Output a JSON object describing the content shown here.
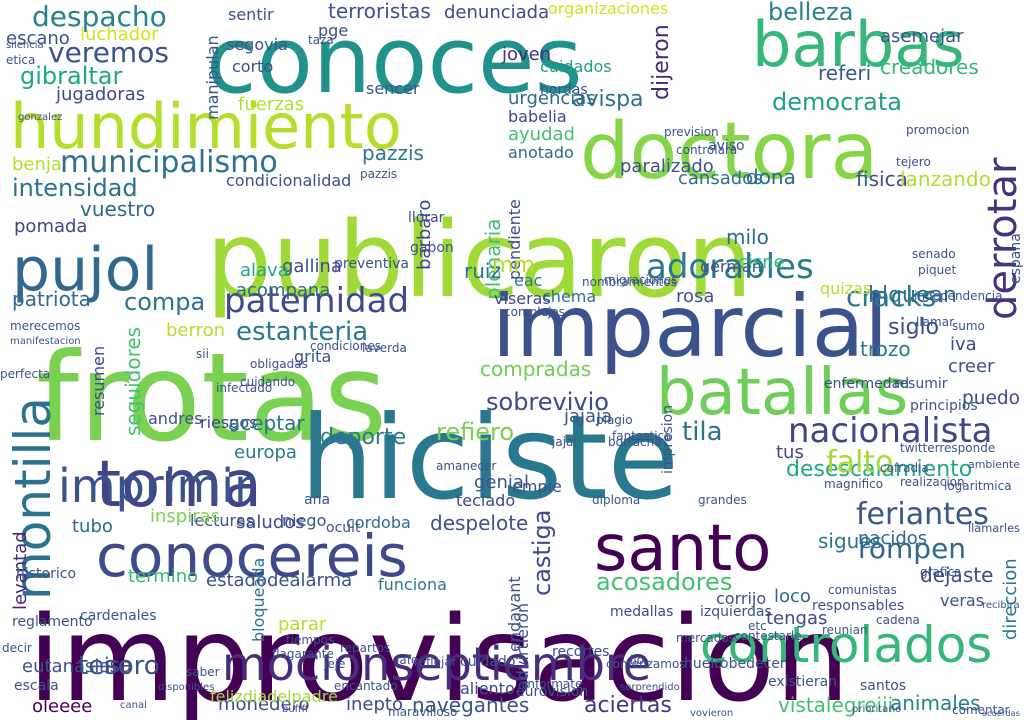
{
  "words": [
    {
      "text": "improvisacion",
      "color": "#440154"
    },
    {
      "text": "frotas",
      "color": "#7ad151"
    },
    {
      "text": "conoces",
      "color": "#21918c"
    },
    {
      "text": "hiciste",
      "color": "#2a788e"
    },
    {
      "text": "publicaron",
      "color": "#a0da39"
    },
    {
      "text": "imparcial",
      "color": "#3b528b"
    },
    {
      "text": "doctora",
      "color": "#86d549"
    },
    {
      "text": "hundimiento",
      "color": "#b5de2b"
    },
    {
      "text": "barbas",
      "color": "#35b779"
    },
    {
      "text": "conocereis",
      "color": "#3e4a89"
    },
    {
      "text": "toma",
      "color": "#414487"
    },
    {
      "text": "santo",
      "color": "#440154"
    },
    {
      "text": "pujol",
      "color": "#31688e"
    },
    {
      "text": "batallas",
      "color": "#6ece58"
    },
    {
      "text": "mocionseptiembre",
      "color": "#472d7b"
    },
    {
      "text": "controlados",
      "color": "#35b779"
    },
    {
      "text": "imprimir",
      "color": "#3b528b"
    },
    {
      "text": "montilla",
      "color": "#2c728e"
    },
    {
      "text": "derrotar",
      "color": "#46337f"
    },
    {
      "text": "adorables",
      "color": "#2a788e"
    },
    {
      "text": "paternidad",
      "color": "#3e4a89"
    },
    {
      "text": "nacionalista",
      "color": "#414487"
    },
    {
      "text": "municipalismo",
      "color": "#2c728e"
    },
    {
      "text": "veremos",
      "color": "#3b528b"
    },
    {
      "text": "despacho",
      "color": "#26828e"
    },
    {
      "text": "gibraltar",
      "color": "#21a685"
    },
    {
      "text": "intensidad",
      "color": "#2c728e"
    },
    {
      "text": "democrata",
      "color": "#1f9e89"
    },
    {
      "text": "estanteria",
      "color": "#2a788e"
    },
    {
      "text": "feriantes",
      "color": "#38588c"
    },
    {
      "text": "desescalamiento",
      "color": "#22a884"
    },
    {
      "text": "acosadores",
      "color": "#44bf70"
    },
    {
      "text": "rompen",
      "color": "#31688e"
    },
    {
      "text": "cracks",
      "color": "#2a788e"
    },
    {
      "text": "tesoro",
      "color": "#3b528b"
    },
    {
      "text": "castiga",
      "color": "#3e4a89"
    },
    {
      "text": "sobrevivio",
      "color": "#3e4a89"
    },
    {
      "text": "refiero",
      "color": "#7ad151"
    },
    {
      "text": "tila",
      "color": "#2c728e"
    },
    {
      "text": "compa",
      "color": "#2c728e"
    },
    {
      "text": "patriota",
      "color": "#31688e"
    },
    {
      "text": "falto",
      "color": "#a5db36"
    },
    {
      "text": "tubo",
      "color": "#31688e"
    },
    {
      "text": "levantad",
      "color": "#482878"
    },
    {
      "text": "cordoba",
      "color": "#31688e"
    },
    {
      "text": "despelote",
      "color": "#3b528b"
    },
    {
      "text": "sigues",
      "color": "#2c728e"
    },
    {
      "text": "nacidos",
      "color": "#31688e"
    },
    {
      "text": "funciona",
      "color": "#2a788e"
    },
    {
      "text": "animales",
      "color": "#26828e"
    },
    {
      "text": "vistalegreiii",
      "color": "#44bf70"
    },
    {
      "text": "aciertas",
      "color": "#46337f"
    },
    {
      "text": "navegantes",
      "color": "#3b528b"
    },
    {
      "text": "monedero",
      "color": "#3e4a89"
    },
    {
      "text": "eutanasia",
      "color": "#3b528b"
    },
    {
      "text": "isa",
      "color": "#3e4a89"
    },
    {
      "text": "felizdiadelpadre",
      "color": "#a0da39"
    },
    {
      "text": "inepto",
      "color": "#3e4a89"
    },
    {
      "text": "oleeee",
      "color": "#440154"
    },
    {
      "text": "direccion",
      "color": "#2a788e"
    },
    {
      "text": "blquean",
      "color": "#2c728e"
    },
    {
      "text": "siglo",
      "color": "#3e4a89"
    },
    {
      "text": "iva",
      "color": "#3e4a89"
    },
    {
      "text": "belleza",
      "color": "#26828e"
    },
    {
      "text": "asemejar",
      "color": "#3b528b"
    },
    {
      "text": "terroristas",
      "color": "#3b528b"
    },
    {
      "text": "denunciada",
      "color": "#3e4a89"
    },
    {
      "text": "organizaciones",
      "color": "#d2e21b"
    },
    {
      "text": "avispa",
      "color": "#2c728e"
    },
    {
      "text": "dijeron",
      "color": "#482878"
    },
    {
      "text": "urgencias",
      "color": "#31688e"
    },
    {
      "text": "babelia",
      "color": "#3e4a89"
    },
    {
      "text": "ayudad",
      "color": "#44bf70"
    },
    {
      "text": "cuidados",
      "color": "#1f9e89"
    },
    {
      "text": "joven",
      "color": "#472d7b"
    },
    {
      "text": "pazzis",
      "color": "#2a788e"
    },
    {
      "text": "anotado",
      "color": "#31688e"
    },
    {
      "text": "jugadoras",
      "color": "#3e4a89"
    },
    {
      "text": "luchador",
      "color": "#d2e21b"
    },
    {
      "text": "escano",
      "color": "#3b528b"
    },
    {
      "text": "sentir",
      "color": "#3b528b"
    },
    {
      "text": "creadores",
      "color": "#35b779"
    },
    {
      "text": "referi",
      "color": "#38588c"
    },
    {
      "text": "fisica",
      "color": "#3b528b"
    },
    {
      "text": "lanzando",
      "color": "#b5de2b"
    },
    {
      "text": "dona",
      "color": "#31688e"
    },
    {
      "text": "cansados",
      "color": "#2c728e"
    },
    {
      "text": "paralizado",
      "color": "#3b528b"
    },
    {
      "text": "vuestro",
      "color": "#31688e"
    },
    {
      "text": "pomada",
      "color": "#3e4a89"
    },
    {
      "text": "benja",
      "color": "#b5de2b"
    },
    {
      "text": "condicionalidad",
      "color": "#3b528b"
    },
    {
      "text": "barbaro",
      "color": "#3e4a89"
    },
    {
      "text": "plenaria",
      "color": "#44bf70"
    },
    {
      "text": "pendiente",
      "color": "#3e4a89"
    },
    {
      "text": "milo",
      "color": "#31688e"
    },
    {
      "text": "cisne",
      "color": "#35b779"
    },
    {
      "text": "german",
      "color": "#3b528b"
    },
    {
      "text": "gallina",
      "color": "#3e4a89"
    },
    {
      "text": "alava",
      "color": "#22a884"
    },
    {
      "text": "preventiva",
      "color": "#3b528b"
    },
    {
      "text": "ruiz",
      "color": "#2c728e"
    },
    {
      "text": "chema",
      "color": "#2c728e"
    },
    {
      "text": "viseras",
      "color": "#3e4a89"
    },
    {
      "text": "acompana",
      "color": "#31688e"
    },
    {
      "text": "berron",
      "color": "#b5de2b"
    },
    {
      "text": "compradas",
      "color": "#6ece58"
    },
    {
      "text": "seguidores",
      "color": "#44bf70"
    },
    {
      "text": "resumen",
      "color": "#3e4a89"
    },
    {
      "text": "andres",
      "color": "#3b528b"
    },
    {
      "text": "riesgos",
      "color": "#3e4a89"
    },
    {
      "text": "aceptar",
      "color": "#2c728e"
    },
    {
      "text": "europa",
      "color": "#2a788e"
    },
    {
      "text": "deporte",
      "color": "#2a788e"
    },
    {
      "text": "lecturas",
      "color": "#3b528b"
    },
    {
      "text": "saludos",
      "color": "#3e4a89"
    },
    {
      "text": "inspiras",
      "color": "#7ad151"
    },
    {
      "text": "niego",
      "color": "#3b528b"
    },
    {
      "text": "genial",
      "color": "#3b528b"
    },
    {
      "text": "teclado",
      "color": "#3e4a89"
    },
    {
      "text": "empie",
      "color": "#3b528b"
    },
    {
      "text": "jajaja",
      "color": "#3b528b"
    },
    {
      "text": "puedo",
      "color": "#3e4a89"
    },
    {
      "text": "creer",
      "color": "#3b528b"
    },
    {
      "text": "dejaste",
      "color": "#3e4a89"
    },
    {
      "text": "veras",
      "color": "#3b528b"
    },
    {
      "text": "tengas",
      "color": "#3e4a89"
    },
    {
      "text": "loco",
      "color": "#31688e"
    },
    {
      "text": "termino",
      "color": "#35b779"
    },
    {
      "text": "estadodealarma",
      "color": "#3b528b"
    },
    {
      "text": "bloqueada",
      "color": "#2c728e"
    },
    {
      "text": "parar",
      "color": "#b5de2b"
    },
    {
      "text": "trozo",
      "color": "#2a788e"
    },
    {
      "text": "quizas",
      "color": "#b5de2b"
    },
    {
      "text": "segovia",
      "color": "#3b528b"
    },
    {
      "text": "pge",
      "color": "#3b528b"
    },
    {
      "text": "fuerzas",
      "color": "#b5de2b"
    },
    {
      "text": "sencer",
      "color": "#3b528b"
    },
    {
      "text": "hordas",
      "color": "#3b528b"
    },
    {
      "text": "tus",
      "color": "#3e4a89"
    },
    {
      "text": "rosa",
      "color": "#3b528b"
    },
    {
      "text": "mercados",
      "color": "#3b528b"
    },
    {
      "text": "medallas",
      "color": "#3e4a89"
    },
    {
      "text": "izquierdas",
      "color": "#3b528b"
    },
    {
      "text": "recortes",
      "color": "#3e4a89"
    },
    {
      "text": "corrijo",
      "color": "#3b528b"
    },
    {
      "text": "huelo",
      "color": "#3b528b"
    },
    {
      "text": "obedecer",
      "color": "#3b528b"
    },
    {
      "text": "existieran",
      "color": "#3b528b"
    },
    {
      "text": "santos",
      "color": "#3b528b"
    },
    {
      "text": "eurovision",
      "color": "#3b528b"
    },
    {
      "text": "aliento",
      "color": "#3e4a89"
    },
    {
      "text": "advirtieron",
      "color": "#3b528b"
    },
    {
      "text": "cuidado",
      "color": "#3b528b"
    },
    {
      "text": "informate",
      "color": "#3b528b"
    },
    {
      "text": "maravilloso",
      "color": "#3b528b"
    },
    {
      "text": "reglamento",
      "color": "#3b528b"
    },
    {
      "text": "historico",
      "color": "#3b528b"
    },
    {
      "text": "escala",
      "color": "#3b528b"
    },
    {
      "text": "cardenales",
      "color": "#3b528b"
    },
    {
      "text": "enfermedad",
      "color": "#3e4a89"
    },
    {
      "text": "resumir",
      "color": "#3b528b"
    },
    {
      "text": "principios",
      "color": "#3b528b"
    },
    {
      "text": "cofradia",
      "color": "#3b528b"
    },
    {
      "text": "ambiente",
      "color": "#3b528b"
    },
    {
      "text": "comunistas",
      "color": "#3b528b"
    },
    {
      "text": "responsables",
      "color": "#3b528b"
    },
    {
      "text": "cadena",
      "color": "#3b528b"
    },
    {
      "text": "etica",
      "color": "#3b528b"
    },
    {
      "text": "silencia",
      "color": "#3b528b"
    },
    {
      "text": "corto",
      "color": "#3b528b"
    },
    {
      "text": "taza",
      "color": "#3b528b"
    },
    {
      "text": "manipulan",
      "color": "#3b528b"
    },
    {
      "text": "gonzalez",
      "color": "#3b528b"
    },
    {
      "text": "aviso",
      "color": "#3b528b"
    },
    {
      "text": "prevision",
      "color": "#3b528b"
    },
    {
      "text": "controlara",
      "color": "#3b528b"
    },
    {
      "text": "promocion",
      "color": "#3b528b"
    },
    {
      "text": "tejero",
      "color": "#3b528b"
    },
    {
      "text": "piquet",
      "color": "#3b528b"
    },
    {
      "text": "independencia",
      "color": "#3b528b"
    },
    {
      "text": "senado",
      "color": "#3b528b"
    },
    {
      "text": "llamar",
      "color": "#3b528b"
    },
    {
      "text": "sumo",
      "color": "#3b528b"
    },
    {
      "text": "gabon",
      "color": "#3b528b"
    },
    {
      "text": "llorar",
      "color": "#3b528b"
    },
    {
      "text": "migraciones",
      "color": "#3b528b"
    },
    {
      "text": "nombramientos",
      "color": "#3b528b"
    },
    {
      "text": "complejos",
      "color": "#3b528b"
    },
    {
      "text": "condiciones",
      "color": "#3b528b"
    },
    {
      "text": "laverda",
      "color": "#3b528b"
    },
    {
      "text": "obligadas",
      "color": "#3b528b"
    },
    {
      "text": "merecemos",
      "color": "#3b528b"
    },
    {
      "text": "manifestacion",
      "color": "#3b528b"
    },
    {
      "text": "perfecta",
      "color": "#3b528b"
    },
    {
      "text": "grita",
      "color": "#3b528b"
    },
    {
      "text": "cuidando",
      "color": "#3b528b"
    },
    {
      "text": "infectado",
      "color": "#3b528b"
    },
    {
      "text": "plagio",
      "color": "#3b528b"
    },
    {
      "text": "jajaj",
      "color": "#3b528b"
    },
    {
      "text": "twitterresponde",
      "color": "#3b528b"
    },
    {
      "text": "realizacion",
      "color": "#3b528b"
    },
    {
      "text": "logaritmica",
      "color": "#3b528b"
    },
    {
      "text": "magnifico",
      "color": "#3b528b"
    },
    {
      "text": "amanecer",
      "color": "#3b528b"
    },
    {
      "text": "diploma",
      "color": "#3b528b"
    },
    {
      "text": "grandes",
      "color": "#3b528b"
    },
    {
      "text": "impresion",
      "color": "#3b528b"
    },
    {
      "text": "espana",
      "color": "#3b528b"
    },
    {
      "text": "pazzis",
      "color": "#3b528b"
    },
    {
      "text": "comentar",
      "color": "#3b528b"
    },
    {
      "text": "acuerdas",
      "color": "#3b528b"
    },
    {
      "text": "llamarles",
      "color": "#3b528b"
    },
    {
      "text": "recibira",
      "color": "#3b528b"
    },
    {
      "text": "grafica",
      "color": "#3b528b"
    },
    {
      "text": "fantastica",
      "color": "#3b528b"
    },
    {
      "text": "borracha",
      "color": "#3b528b"
    },
    {
      "text": "contestarle",
      "color": "#3b528b"
    },
    {
      "text": "reunian",
      "color": "#3b528b"
    },
    {
      "text": "tiempos",
      "color": "#3b528b"
    },
    {
      "text": "flagarante",
      "color": "#3b528b"
    },
    {
      "text": "repartos",
      "color": "#3b528b"
    },
    {
      "text": "jeje",
      "color": "#3b528b"
    },
    {
      "text": "jafe",
      "color": "#3b528b"
    },
    {
      "text": "reflejar",
      "color": "#3b528b"
    },
    {
      "text": "comenzamos",
      "color": "#3b528b"
    },
    {
      "text": "encantado",
      "color": "#3b528b"
    },
    {
      "text": "disponibles",
      "color": "#3b528b"
    },
    {
      "text": "canal",
      "color": "#3b528b"
    },
    {
      "text": "buffff",
      "color": "#3b528b"
    },
    {
      "text": "prioritario",
      "color": "#3b528b"
    },
    {
      "text": "sorprendido",
      "color": "#3b528b"
    },
    {
      "text": "vovieron",
      "color": "#3b528b"
    },
    {
      "text": "endavant",
      "color": "#3b528b"
    },
    {
      "text": "saber",
      "color": "#3b528b"
    },
    {
      "text": "decir",
      "color": "#3b528b"
    },
    {
      "text": "mm",
      "color": "#b5de2b"
    },
    {
      "text": "eac",
      "color": "#2a788e"
    },
    {
      "text": "ocult",
      "color": "#3b528b"
    },
    {
      "text": "ana",
      "color": "#3b528b"
    },
    {
      "text": "lio",
      "color": "#3b528b"
    },
    {
      "text": "etc",
      "color": "#3b528b"
    },
    {
      "text": "sii",
      "color": "#3b528b"
    }
  ]
}
